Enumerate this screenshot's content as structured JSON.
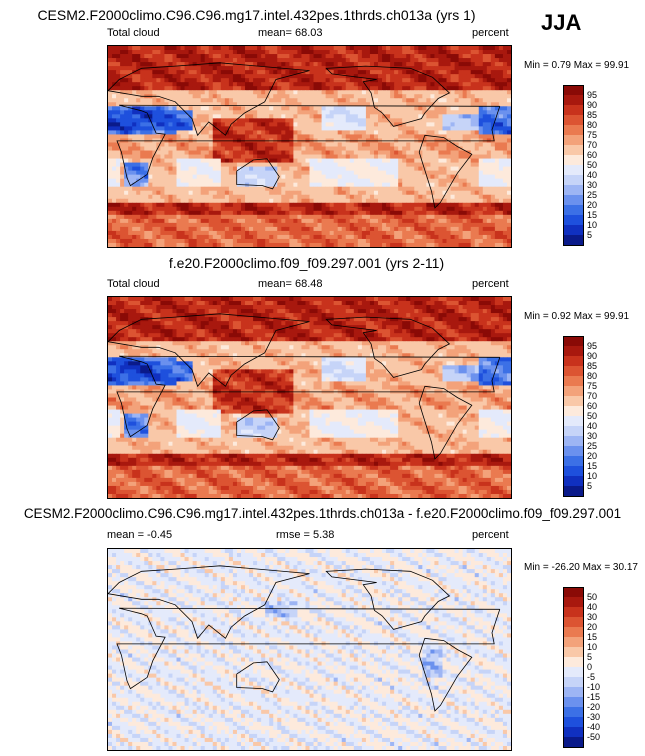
{
  "season": "JJA",
  "colors": {
    "full_scale": [
      "#0a1a8a",
      "#1030c0",
      "#1e50dd",
      "#3c70e6",
      "#6b91ee",
      "#9db5f4",
      "#c6d4f8",
      "#e4eafb",
      "#fdeadc",
      "#f9c8a8",
      "#f3a27a",
      "#ea7a50",
      "#dc5432",
      "#c8321c",
      "#a8180e",
      "#8a0a06"
    ],
    "diff_scale": [
      "#0a1a8a",
      "#1030c0",
      "#1e50dd",
      "#3c70e6",
      "#6b91ee",
      "#9db5f4",
      "#c6d4f8",
      "#e4eafb",
      "#fdeadc",
      "#f9c8a8",
      "#f3a27a",
      "#ea7a50",
      "#dc5432",
      "#c8321c",
      "#a8180e",
      "#8a0a06"
    ]
  },
  "panels": [
    {
      "title": "CESM2.F2000climo.C96.C96.mg17.intel.432pes.1thrds.ch013a (yrs 1)",
      "left_label": "Total cloud",
      "center_label": "mean=  68.03",
      "right_label": "percent",
      "minmax": "Min =   0.79 Max =  99.91",
      "colorbar_labels": [
        "95",
        "90",
        "85",
        "80",
        "75",
        "70",
        "60",
        "50",
        "40",
        "30",
        "25",
        "20",
        "15",
        "10",
        "5"
      ],
      "kind": "full"
    },
    {
      "title": "f.e20.F2000climo.f09_f09.297.001 (yrs 2-11)",
      "left_label": "Total cloud",
      "center_label": "mean=  68.48",
      "right_label": "percent",
      "minmax": "Min =   0.92 Max =  99.91",
      "colorbar_labels": [
        "95",
        "90",
        "85",
        "80",
        "75",
        "70",
        "60",
        "50",
        "40",
        "30",
        "25",
        "20",
        "15",
        "10",
        "5"
      ],
      "kind": "full"
    },
    {
      "title": "CESM2.F2000climo.C96.C96.mg17.intel.432pes.1thrds.ch013a - f.e20.F2000climo.f09_f09.297.001",
      "left_label": "mean =  -0.45",
      "center_label": "rmse =   5.38",
      "right_label": "percent",
      "minmax": "Min = -26.20 Max =  30.17",
      "colorbar_labels": [
        "50",
        "40",
        "30",
        "20",
        "15",
        "10",
        "5",
        "0",
        "-5",
        "-10",
        "-15",
        "-20",
        "-30",
        "-40",
        "-50"
      ],
      "kind": "diff"
    }
  ],
  "chart_data": [
    {
      "type": "heatmap",
      "title": "CESM2.F2000climo.C96.C96.mg17.intel.432pes.1thrds.ch013a (yrs 1)",
      "variable": "Total cloud",
      "units": "percent",
      "mean": 68.03,
      "min": 0.79,
      "max": 99.91,
      "contour_levels": [
        5,
        10,
        15,
        20,
        25,
        30,
        40,
        50,
        60,
        70,
        75,
        80,
        85,
        90,
        95
      ],
      "projection": "global lat-lon, 0-360 longitude"
    },
    {
      "type": "heatmap",
      "title": "f.e20.F2000climo.f09_f09.297.001 (yrs 2-11)",
      "variable": "Total cloud",
      "units": "percent",
      "mean": 68.48,
      "min": 0.92,
      "max": 99.91,
      "contour_levels": [
        5,
        10,
        15,
        20,
        25,
        30,
        40,
        50,
        60,
        70,
        75,
        80,
        85,
        90,
        95
      ]
    },
    {
      "type": "heatmap",
      "title": "CESM2.F2000climo.C96.C96.mg17.intel.432pes.1thrds.ch013a - f.e20.F2000climo.f09_f09.297.001",
      "variable": "Total cloud difference",
      "units": "percent",
      "mean": -0.45,
      "rmse": 5.38,
      "min": -26.2,
      "max": 30.17,
      "contour_levels": [
        -50,
        -40,
        -30,
        -20,
        -15,
        -10,
        -5,
        0,
        5,
        10,
        15,
        20,
        30,
        40,
        50
      ]
    }
  ]
}
